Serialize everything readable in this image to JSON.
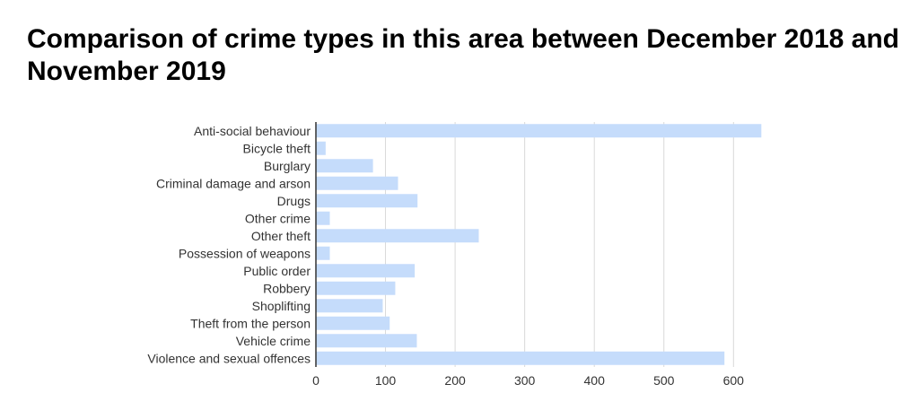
{
  "colors": {
    "bar": "#c5dcfb",
    "grid": "#d9d9d9",
    "axis": "#333333",
    "text": "#333333"
  },
  "chart_data": {
    "type": "bar",
    "orientation": "horizontal",
    "title": "Comparison of crime types in this area between December 2018 and November 2019",
    "xlabel": "",
    "ylabel": "",
    "categories": [
      "Anti-social behaviour",
      "Bicycle theft",
      "Burglary",
      "Criminal damage and arson",
      "Drugs",
      "Other crime",
      "Other theft",
      "Possession of weapons",
      "Public order",
      "Robbery",
      "Shoplifting",
      "Theft from the person",
      "Vehicle crime",
      "Violence and sexual offences"
    ],
    "values": [
      640,
      14,
      82,
      118,
      146,
      20,
      234,
      20,
      142,
      114,
      96,
      106,
      145,
      587
    ],
    "xlim": [
      0,
      640
    ],
    "xticks": [
      0,
      100,
      200,
      300,
      400,
      500,
      600
    ],
    "grid": true,
    "legend": "none"
  }
}
